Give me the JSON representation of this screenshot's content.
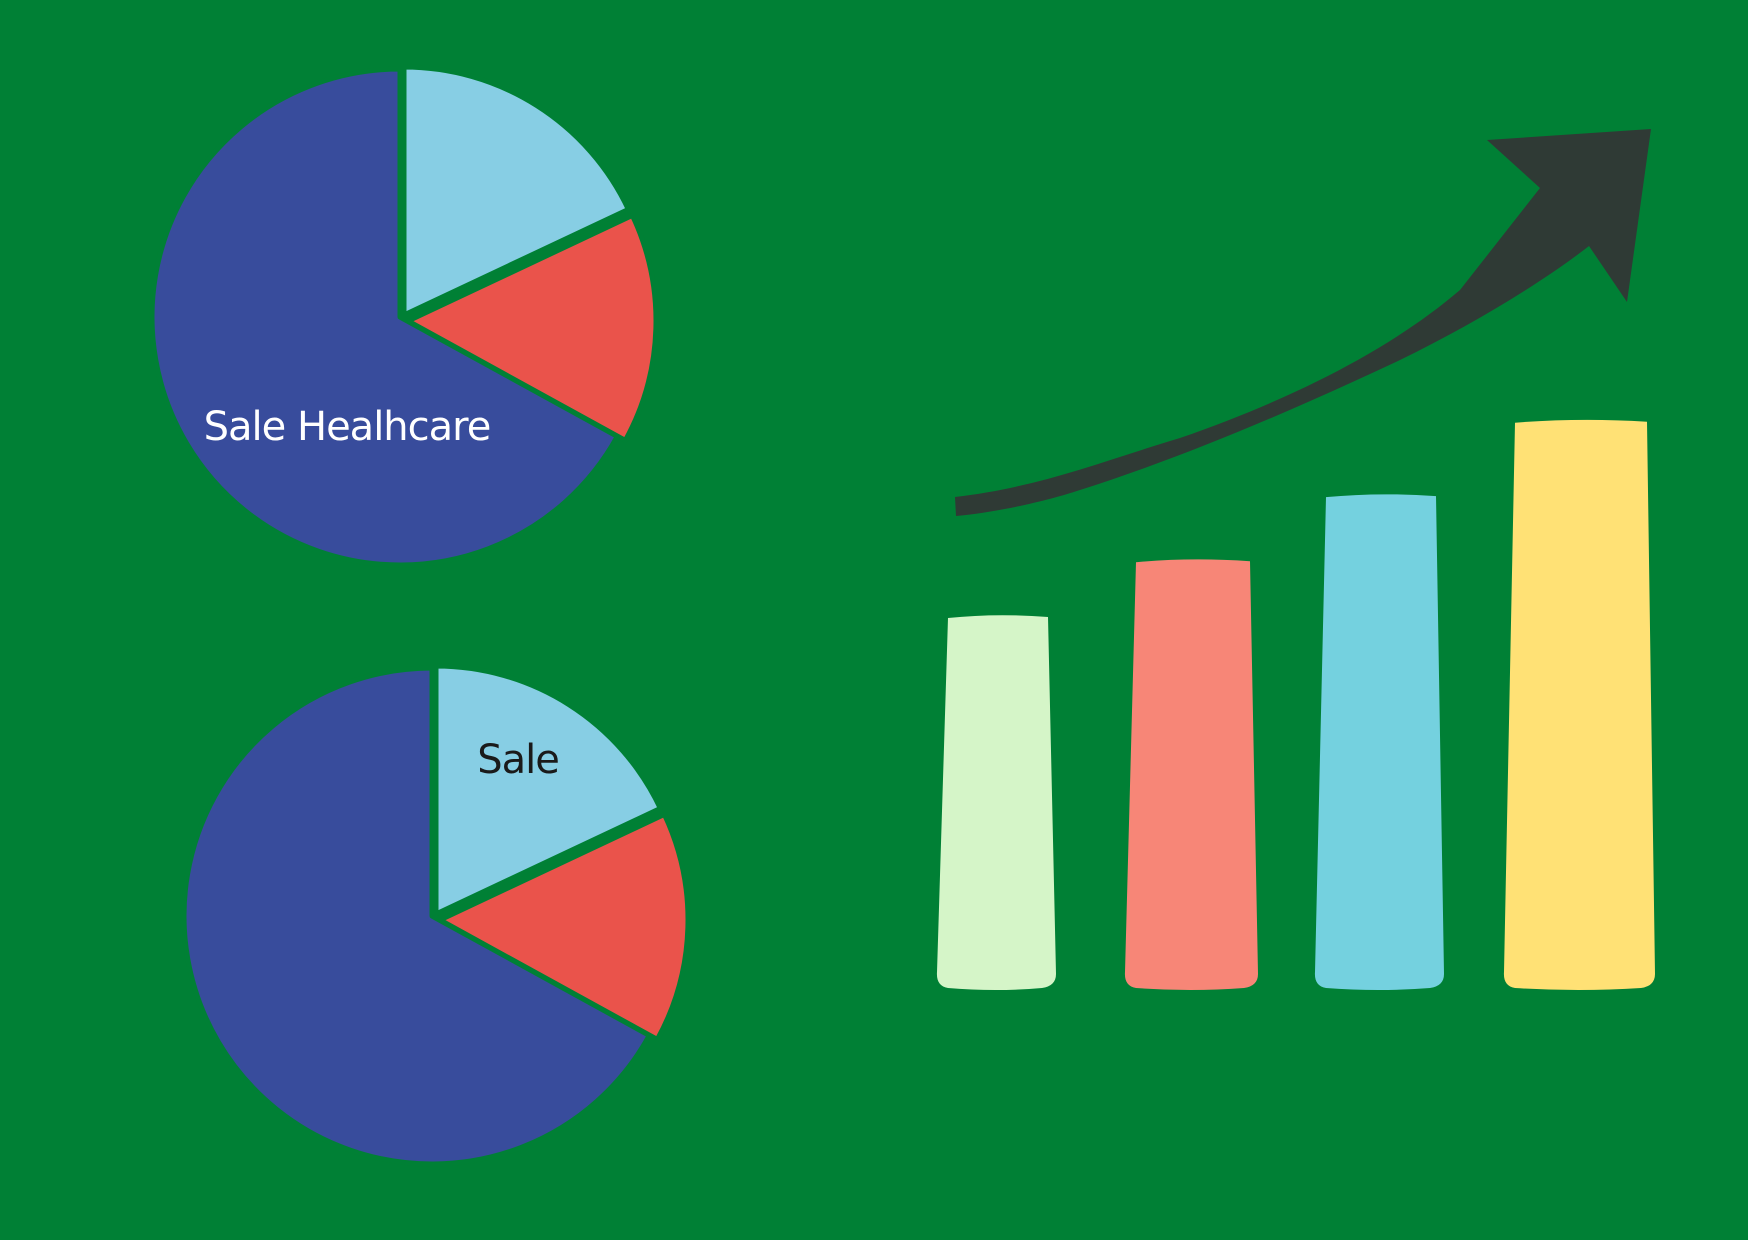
{
  "background": "#008035",
  "chart_data": [
    {
      "type": "pie",
      "slices": [
        {
          "value": 18,
          "color": "#87CEE4"
        },
        {
          "value": 15,
          "color": "#EA534B"
        },
        {
          "value": 67,
          "color": "#384C9C"
        }
      ],
      "label": {
        "text": "Sale Healhcare",
        "color": "#FFFFFF"
      }
    },
    {
      "type": "pie",
      "slices": [
        {
          "value": 18,
          "color": "#87CEE4"
        },
        {
          "value": 15,
          "color": "#EA534B"
        },
        {
          "value": 67,
          "color": "#384C9C"
        }
      ],
      "label": {
        "text": "Sale",
        "color": "#1A1A1A"
      }
    },
    {
      "type": "bar",
      "values": [
        40,
        46,
        53,
        61
      ],
      "colors": [
        "#D5F5C8",
        "#F78677",
        "#74D1DF",
        "#FFE175"
      ],
      "trend_arrow": {
        "direction": "up",
        "color": "#2F3A35"
      }
    }
  ]
}
